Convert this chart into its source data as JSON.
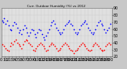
{
  "title": "Curr. Outdoor Humidity (%) vs 2012",
  "bg_color": "#c8c8c8",
  "plot_bg": "#e0e0e0",
  "blue_x": [
    2,
    5,
    8,
    12,
    16,
    20,
    24,
    28,
    32,
    36,
    40,
    44,
    48,
    52,
    56,
    60,
    64,
    68,
    72,
    76,
    80,
    84,
    88,
    92,
    96,
    100,
    104,
    108,
    112,
    116,
    120,
    124,
    128,
    132,
    136,
    140,
    144,
    148,
    152,
    156,
    160,
    164,
    168,
    172,
    176,
    180,
    184,
    188,
    192,
    196,
    200,
    204,
    208,
    212,
    216,
    220,
    224,
    228,
    232,
    236,
    240,
    244,
    248,
    252,
    256,
    260,
    264,
    268,
    272,
    276,
    280,
    284,
    288,
    292,
    296,
    300
  ],
  "blue_y": [
    72,
    70,
    75,
    68,
    72,
    65,
    60,
    58,
    65,
    70,
    68,
    62,
    55,
    58,
    52,
    60,
    65,
    62,
    55,
    50,
    55,
    60,
    58,
    52,
    48,
    55,
    60,
    58,
    52,
    48,
    45,
    50,
    55,
    60,
    65,
    70,
    72,
    68,
    62,
    58,
    55,
    52,
    55,
    60,
    65,
    68,
    70,
    72,
    68,
    65,
    60,
    55,
    52,
    55,
    60,
    65,
    68,
    70,
    72,
    68,
    62,
    58,
    55,
    52,
    55,
    60,
    65,
    70,
    72,
    68,
    65,
    60,
    55,
    58,
    62,
    68
  ],
  "red_x": [
    4,
    8,
    12,
    16,
    20,
    24,
    28,
    32,
    36,
    40,
    44,
    48,
    52,
    56,
    60,
    64,
    68,
    72,
    76,
    80,
    84,
    88,
    92,
    96,
    100,
    104,
    108,
    112,
    116,
    120,
    124,
    128,
    132,
    136,
    140,
    144,
    148,
    152,
    156,
    160,
    164,
    168,
    172,
    176,
    180,
    184,
    188,
    192,
    196,
    200,
    204,
    208,
    212,
    216,
    220,
    224,
    228,
    232,
    236,
    240,
    244,
    248,
    252,
    256,
    260,
    264,
    268,
    272,
    276,
    280,
    284,
    288,
    292,
    296,
    300
  ],
  "red_y": [
    38,
    35,
    32,
    30,
    28,
    35,
    40,
    38,
    42,
    45,
    40,
    38,
    35,
    32,
    38,
    42,
    45,
    43,
    40,
    38,
    35,
    30,
    28,
    32,
    35,
    38,
    40,
    38,
    35,
    32,
    28,
    30,
    35,
    38,
    40,
    38,
    35,
    32,
    28,
    30,
    32,
    35,
    38,
    40,
    38,
    35,
    32,
    30,
    28,
    25,
    28,
    30,
    32,
    35,
    38,
    40,
    38,
    35,
    32,
    30,
    28,
    30,
    35,
    38,
    40,
    38,
    35,
    32,
    30,
    28,
    30,
    35,
    38,
    40,
    38
  ],
  "xlim": [
    0,
    305
  ],
  "ylim": [
    20,
    90
  ],
  "yticks": [
    20,
    30,
    40,
    50,
    60,
    70,
    80,
    90
  ],
  "dot_size": 1.5,
  "grid_color": "#aaaaaa",
  "tick_fontsize": 3.5
}
